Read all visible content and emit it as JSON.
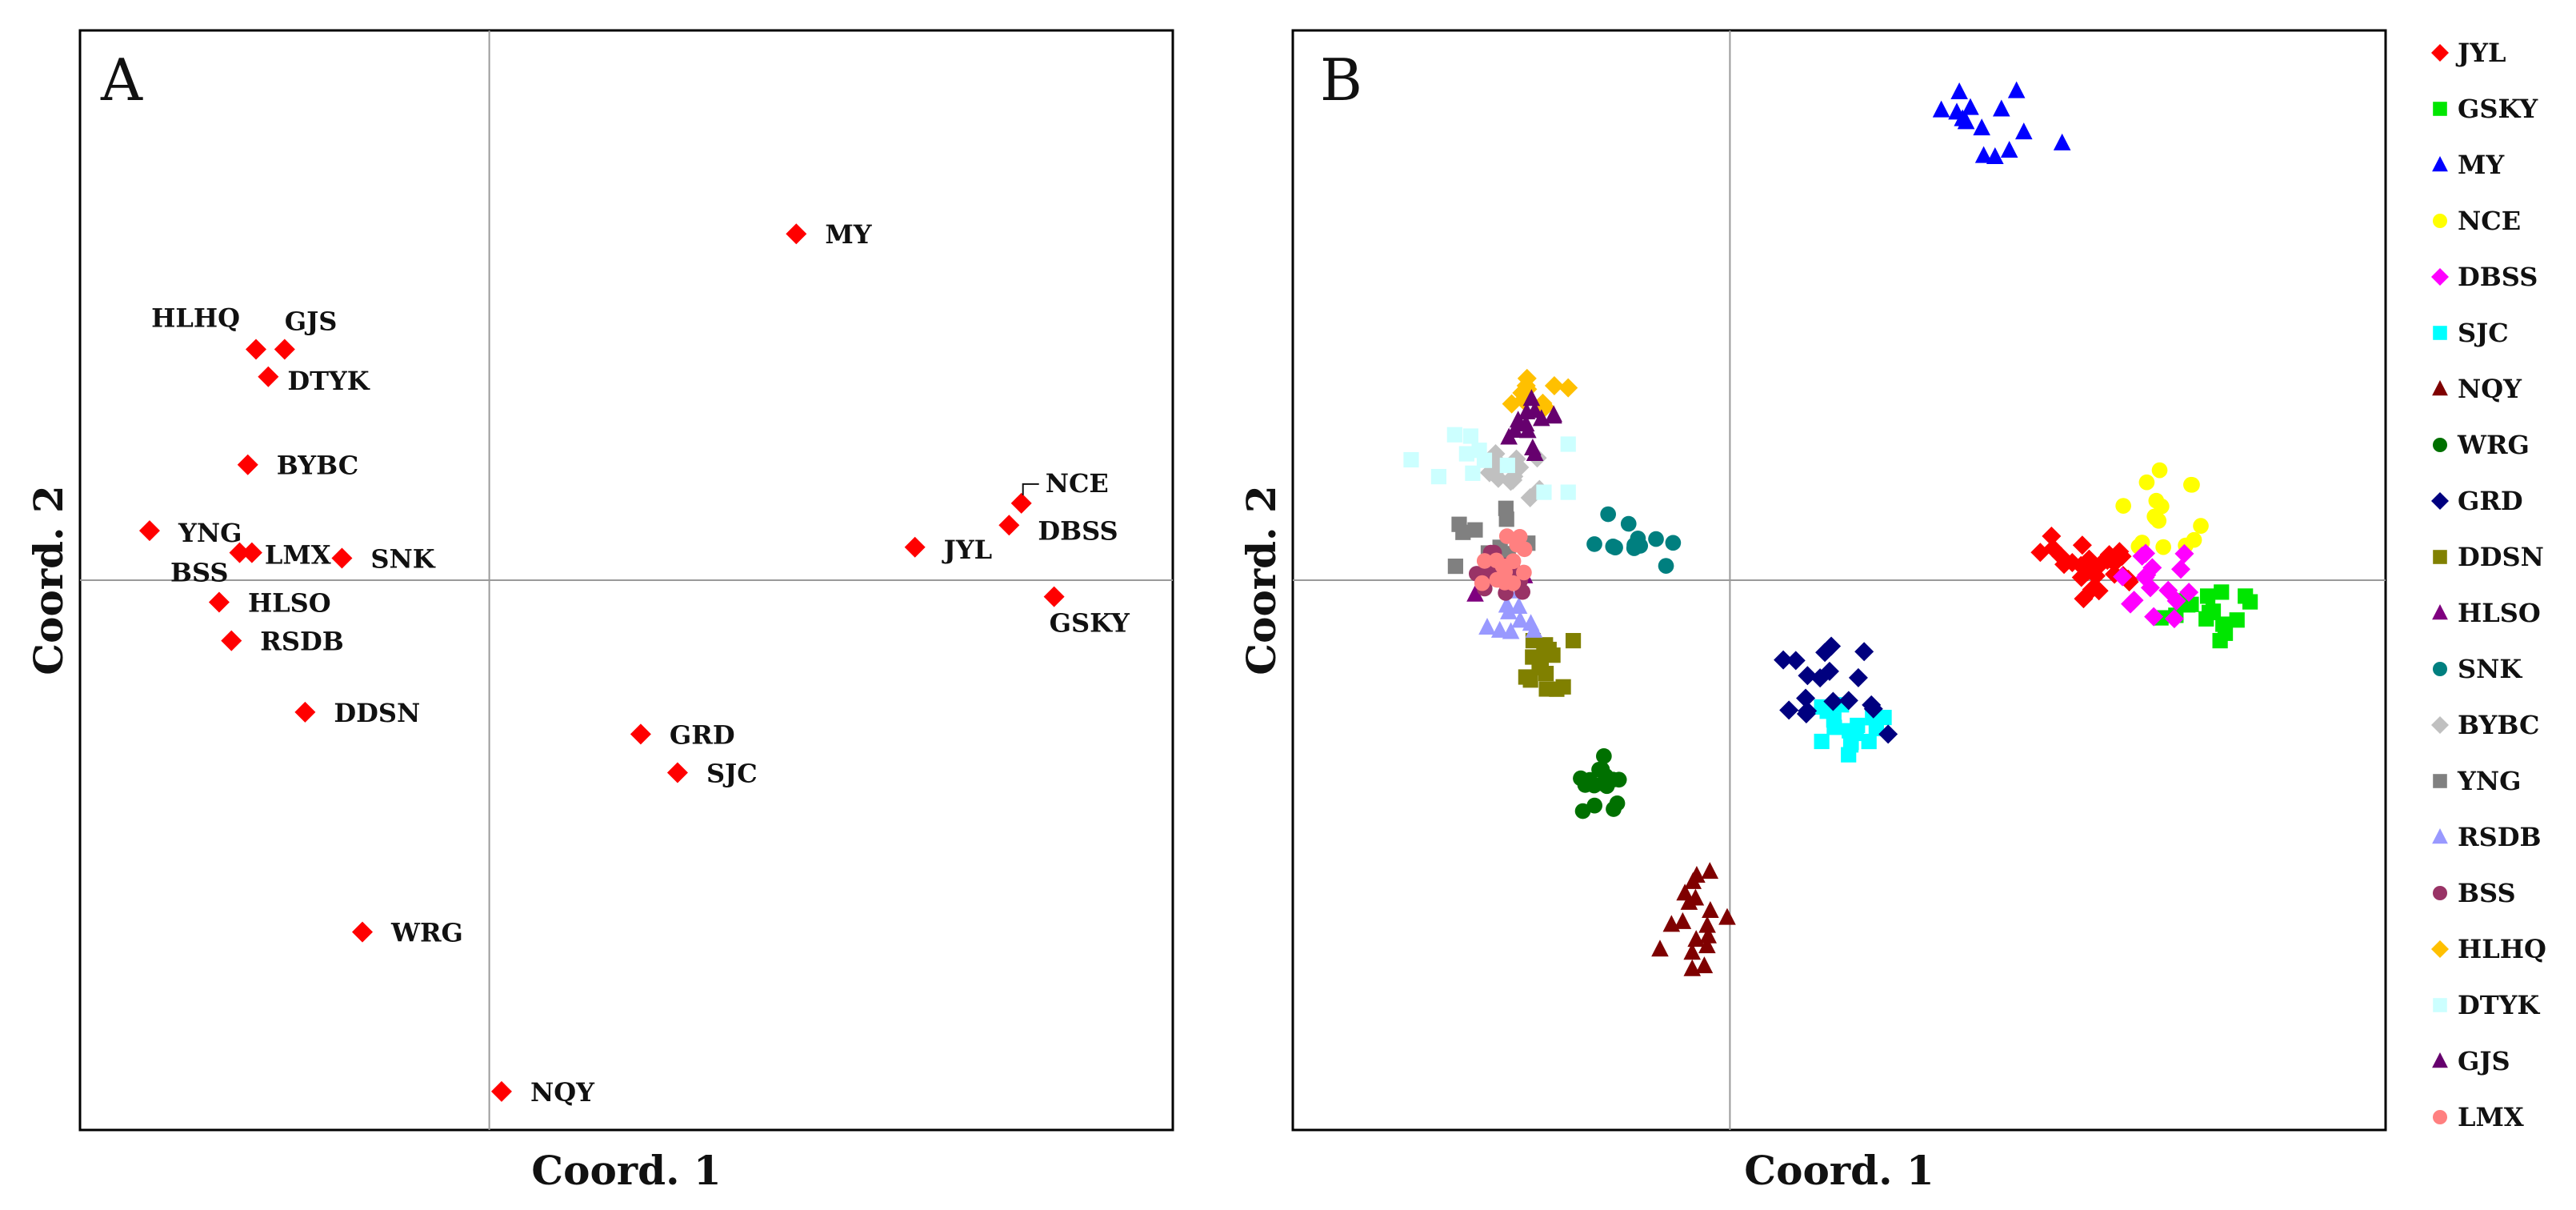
{
  "chart_data": [
    {
      "type": "scatter",
      "panel_label": "A",
      "xlabel": "Coord. 1",
      "ylabel": "Coord. 2",
      "xlim": [
        -1,
        1.67
      ],
      "ylim": [
        -1,
        1
      ],
      "grid": "zero lines only",
      "marker": "diamond",
      "color": "#ff0000",
      "points": [
        {
          "label": "MY",
          "x": 0.75,
          "y": 0.63
        },
        {
          "label": "HLHQ",
          "x": -0.57,
          "y": 0.42
        },
        {
          "label": "GJS",
          "x": -0.5,
          "y": 0.42
        },
        {
          "label": "DTYK",
          "x": -0.54,
          "y": 0.37
        },
        {
          "label": "BYBC",
          "x": -0.59,
          "y": 0.21
        },
        {
          "label": "NCE",
          "x": 1.3,
          "y": 0.14
        },
        {
          "label": "DBSS",
          "x": 1.27,
          "y": 0.1
        },
        {
          "label": "YNG",
          "x": -0.83,
          "y": 0.09
        },
        {
          "label": "LMX",
          "x": -0.58,
          "y": 0.05
        },
        {
          "label": "BSS",
          "x": -0.61,
          "y": 0.05
        },
        {
          "label": "SNK",
          "x": -0.36,
          "y": 0.04
        },
        {
          "label": "JYL",
          "x": 1.04,
          "y": 0.06
        },
        {
          "label": "GSKY",
          "x": 1.38,
          "y": -0.03
        },
        {
          "label": "HLSO",
          "x": -0.66,
          "y": -0.04
        },
        {
          "label": "RSDB",
          "x": -0.63,
          "y": -0.11
        },
        {
          "label": "DDSN",
          "x": -0.45,
          "y": -0.24
        },
        {
          "label": "GRD",
          "x": 0.37,
          "y": -0.28
        },
        {
          "label": "SJC",
          "x": 0.46,
          "y": -0.35
        },
        {
          "label": "WRG",
          "x": -0.31,
          "y": -0.64
        },
        {
          "label": "NQY",
          "x": 0.03,
          "y": -0.93
        }
      ]
    },
    {
      "type": "scatter",
      "panel_label": "B",
      "xlabel": "Coord. 1",
      "ylabel": "Coord. 2",
      "xlim": [
        -1,
        1.5
      ],
      "ylim": [
        -1,
        1
      ],
      "grid": "zero lines only",
      "legend_position": "right",
      "series": [
        {
          "name": "JYL",
          "color": "#ff0000",
          "marker": "diamond",
          "center": [
            0.83,
            0.02
          ],
          "spread": [
            0.12,
            0.06
          ],
          "n": 26
        },
        {
          "name": "GSKY",
          "color": "#00e600",
          "marker": "square",
          "center": [
            1.07,
            -0.06
          ],
          "spread": [
            0.12,
            0.05
          ],
          "n": 16
        },
        {
          "name": "MY",
          "color": "#0000ff",
          "marker": "triangle",
          "center": [
            0.62,
            0.83
          ],
          "spread": [
            0.14,
            0.06
          ],
          "n": 14
        },
        {
          "name": "NCE",
          "color": "#ffff00",
          "marker": "circle",
          "center": [
            1.0,
            0.12
          ],
          "spread": [
            0.1,
            0.08
          ],
          "n": 16
        },
        {
          "name": "DBSS",
          "color": "#ff00ff",
          "marker": "diamond",
          "center": [
            0.93,
            -0.01
          ],
          "spread": [
            0.12,
            0.06
          ],
          "n": 16
        },
        {
          "name": "SJC",
          "color": "#00ffff",
          "marker": "square",
          "center": [
            0.3,
            -0.26
          ],
          "spread": [
            0.09,
            0.06
          ],
          "n": 16
        },
        {
          "name": "NQY",
          "color": "#7f0000",
          "marker": "triangle",
          "center": [
            -0.08,
            -0.62
          ],
          "spread": [
            0.08,
            0.09
          ],
          "n": 18
        },
        {
          "name": "WRG",
          "color": "#007000",
          "marker": "circle",
          "center": [
            -0.3,
            -0.37
          ],
          "spread": [
            0.06,
            0.05
          ],
          "n": 16
        },
        {
          "name": "GRD",
          "color": "#00007f",
          "marker": "diamond",
          "center": [
            0.25,
            -0.2
          ],
          "spread": [
            0.13,
            0.08
          ],
          "n": 18
        },
        {
          "name": "DDSN",
          "color": "#808000",
          "marker": "square",
          "center": [
            -0.4,
            -0.16
          ],
          "spread": [
            0.07,
            0.05
          ],
          "n": 16
        },
        {
          "name": "HLSO",
          "color": "#7f007f",
          "marker": "triangle",
          "center": [
            -0.53,
            0.01
          ],
          "spread": [
            0.06,
            0.04
          ],
          "n": 8
        },
        {
          "name": "SNK",
          "color": "#007f7f",
          "marker": "circle",
          "center": [
            -0.22,
            0.07
          ],
          "spread": [
            0.09,
            0.05
          ],
          "n": 12
        },
        {
          "name": "BYBC",
          "color": "#c0c0c0",
          "marker": "diamond",
          "center": [
            -0.48,
            0.19
          ],
          "spread": [
            0.07,
            0.04
          ],
          "n": 14
        },
        {
          "name": "YNG",
          "color": "#808080",
          "marker": "square",
          "center": [
            -0.55,
            0.08
          ],
          "spread": [
            0.09,
            0.07
          ],
          "n": 10
        },
        {
          "name": "RSDB",
          "color": "#9999ff",
          "marker": "triangle",
          "center": [
            -0.5,
            -0.06
          ],
          "spread": [
            0.07,
            0.04
          ],
          "n": 10
        },
        {
          "name": "BSS",
          "color": "#993366",
          "marker": "circle",
          "center": [
            -0.53,
            0.01
          ],
          "spread": [
            0.06,
            0.04
          ],
          "n": 22
        },
        {
          "name": "HLHQ",
          "color": "#ffc000",
          "marker": "diamond",
          "center": [
            -0.44,
            0.34
          ],
          "spread": [
            0.07,
            0.03
          ],
          "n": 10
        },
        {
          "name": "DTYK",
          "color": "#ccffff",
          "marker": "square",
          "center": [
            -0.55,
            0.22
          ],
          "spread": [
            0.18,
            0.06
          ],
          "n": 12
        },
        {
          "name": "GJS",
          "color": "#66006e",
          "marker": "triangle",
          "center": [
            -0.45,
            0.28
          ],
          "spread": [
            0.08,
            0.05
          ],
          "n": 14
        },
        {
          "name": "LMX",
          "color": "#ff8080",
          "marker": "circle",
          "center": [
            -0.53,
            0.03
          ],
          "spread": [
            0.06,
            0.05
          ],
          "n": 14
        }
      ]
    }
  ]
}
